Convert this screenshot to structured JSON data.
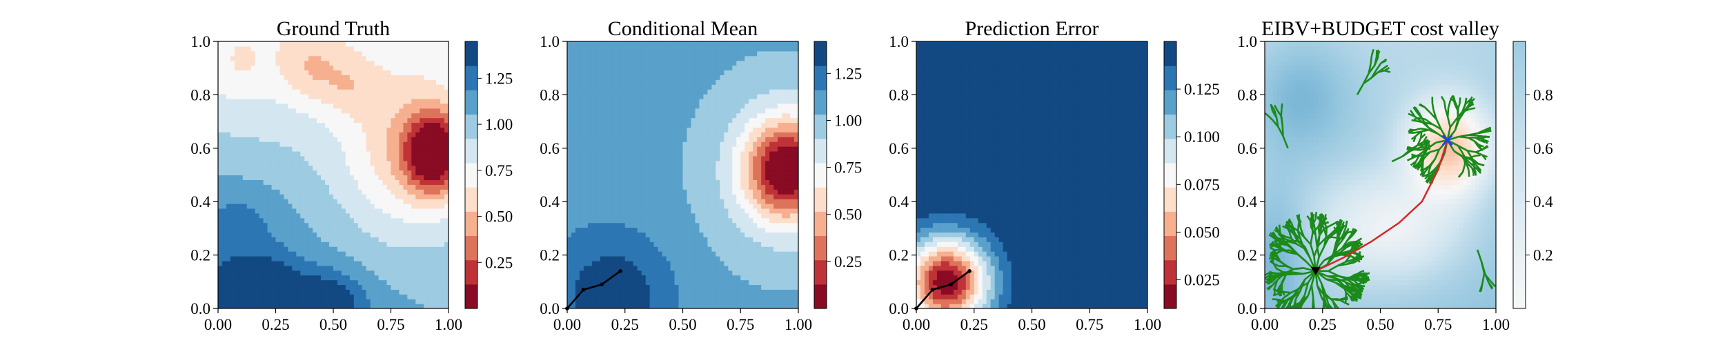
{
  "chart_data": [
    {
      "type": "heatmap",
      "title": "Ground Truth",
      "xlim": [
        0,
        1
      ],
      "ylim": [
        0,
        1
      ],
      "xticks": [
        "0.00",
        "0.25",
        "0.50",
        "0.75",
        "1.00"
      ],
      "yticks": [
        "0.0",
        "0.2",
        "0.4",
        "0.6",
        "0.8",
        "1.0"
      ],
      "colormap": "RdBu",
      "colorbar": {
        "min": 0.0,
        "max": 1.45,
        "ticks": [
          "0.25",
          "0.50",
          "0.75",
          "1.00",
          "1.25"
        ],
        "tick_values": [
          0.25,
          0.5,
          0.75,
          1.0,
          1.25
        ]
      }
    },
    {
      "type": "heatmap",
      "title": "Conditional Mean",
      "xlim": [
        0,
        1
      ],
      "ylim": [
        0,
        1
      ],
      "xticks": [
        "0.00",
        "0.25",
        "0.50",
        "0.75",
        "1.00"
      ],
      "yticks": [
        "0.0",
        "0.2",
        "0.4",
        "0.6",
        "0.8",
        "1.0"
      ],
      "colormap": "RdBu",
      "colorbar": {
        "min": 0.0,
        "max": 1.42,
        "ticks": [
          "0.25",
          "0.50",
          "0.75",
          "1.00",
          "1.25"
        ],
        "tick_values": [
          0.25,
          0.5,
          0.75,
          1.0,
          1.25
        ]
      },
      "path": {
        "x": [
          0.0,
          0.07,
          0.15,
          0.23
        ],
        "y": [
          0.0,
          0.07,
          0.09,
          0.14
        ]
      }
    },
    {
      "type": "heatmap",
      "title": "Prediction Error",
      "xlim": [
        0,
        1
      ],
      "ylim": [
        0,
        1
      ],
      "xticks": [
        "0.00",
        "0.25",
        "0.50",
        "0.75",
        "1.00"
      ],
      "yticks": [
        "0.0",
        "0.2",
        "0.4",
        "0.6",
        "0.8",
        "1.0"
      ],
      "colormap": "RdBu",
      "colorbar": {
        "min": 0.01,
        "max": 0.15,
        "ticks": [
          "0.025",
          "0.050",
          "0.075",
          "0.100",
          "0.125"
        ],
        "tick_values": [
          0.025,
          0.05,
          0.075,
          0.1,
          0.125
        ]
      },
      "path": {
        "x": [
          0.0,
          0.07,
          0.15,
          0.23
        ],
        "y": [
          0.0,
          0.07,
          0.09,
          0.14
        ]
      }
    },
    {
      "type": "heatmap",
      "title": "EIBV+BUDGET cost valley",
      "xlim": [
        0,
        1
      ],
      "ylim": [
        0,
        1
      ],
      "xticks": [
        "0.00",
        "0.25",
        "0.50",
        "0.75",
        "1.00"
      ],
      "yticks": [
        "0.0",
        "0.2",
        "0.4",
        "0.6",
        "0.8",
        "1.0"
      ],
      "colormap": "RdBu",
      "colorbar": {
        "min": 0.0,
        "max": 1.0,
        "ticks": [
          "0.2",
          "0.4",
          "0.6",
          "0.8"
        ],
        "tick_values": [
          0.2,
          0.4,
          0.6,
          0.8
        ]
      },
      "start": {
        "x": 0.22,
        "y": 0.14
      },
      "target": {
        "x": 0.79,
        "y": 0.63
      },
      "path": {
        "x": [
          0.22,
          0.34,
          0.46,
          0.58,
          0.68,
          0.75,
          0.79
        ],
        "y": [
          0.14,
          0.19,
          0.25,
          0.32,
          0.4,
          0.52,
          0.63
        ]
      },
      "tree_color": "#1b8a1b"
    }
  ],
  "colors": {
    "rdbu": [
      "#67001f",
      "#b2182b",
      "#d6604d",
      "#f4a582",
      "#fddbc7",
      "#f7f7f7",
      "#d1e5f0",
      "#92c5de",
      "#4393c3",
      "#2166ac",
      "#053061"
    ]
  }
}
